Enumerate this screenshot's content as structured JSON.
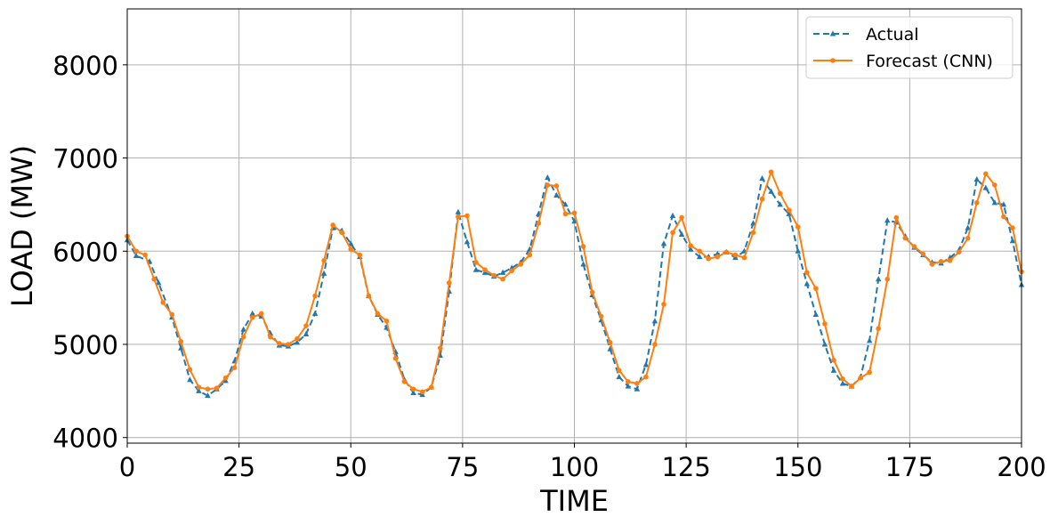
{
  "chart_data": {
    "type": "line",
    "title": "",
    "xlabel": "TIME",
    "ylabel": "LOAD (MW)",
    "xlim": [
      0,
      200
    ],
    "ylim": [
      3940,
      8600
    ],
    "xticks": [
      0,
      25,
      50,
      75,
      100,
      125,
      150,
      175,
      200
    ],
    "yticks": [
      4000,
      5000,
      6000,
      7000,
      8000
    ],
    "grid": true,
    "legend_position": "top-right",
    "series": [
      {
        "name": "Actual",
        "color": "#1f77b4",
        "line_style": "dashed",
        "marker": "triangle",
        "x": [
          0,
          2,
          5,
          7,
          10,
          12,
          14,
          16,
          18,
          20,
          22,
          24,
          26,
          28,
          30,
          32,
          34,
          36,
          38,
          40,
          42,
          44,
          46,
          48,
          50,
          52,
          54,
          56,
          58,
          60,
          62,
          64,
          66,
          68,
          70,
          72,
          74,
          76,
          78,
          80,
          82,
          84,
          86,
          88,
          90,
          92,
          94,
          96,
          98,
          100,
          102,
          104,
          106,
          108,
          110,
          112,
          114,
          116,
          118,
          120,
          122,
          124,
          126,
          128,
          130,
          132,
          134,
          136,
          138,
          140,
          142,
          144,
          146,
          148,
          150,
          152,
          154,
          156,
          158,
          160,
          162,
          164,
          166,
          168,
          170,
          172,
          174,
          176,
          178,
          180,
          182,
          184,
          186,
          188,
          190,
          192,
          194,
          196,
          198,
          200
        ],
        "y": [
          6120,
          5950,
          5890,
          5660,
          5290,
          4960,
          4620,
          4500,
          4450,
          4520,
          4610,
          4820,
          5160,
          5330,
          5300,
          5120,
          4990,
          4980,
          5020,
          5110,
          5330,
          5760,
          6250,
          6220,
          6080,
          5940,
          5520,
          5320,
          5180,
          4920,
          4620,
          4480,
          4460,
          4540,
          4880,
          5570,
          6420,
          6100,
          5800,
          5770,
          5730,
          5770,
          5820,
          5880,
          6020,
          6400,
          6790,
          6600,
          6500,
          6320,
          5860,
          5530,
          5260,
          4950,
          4650,
          4550,
          4520,
          4780,
          5250,
          6080,
          6380,
          6180,
          6020,
          5940,
          5940,
          5970,
          5990,
          5930,
          6000,
          6300,
          6780,
          6640,
          6500,
          6400,
          6000,
          5650,
          5320,
          5000,
          4720,
          4580,
          4550,
          4650,
          5040,
          5700,
          6330,
          6310,
          6160,
          6040,
          5960,
          5880,
          5870,
          5930,
          6010,
          6250,
          6770,
          6680,
          6520,
          6500,
          6110,
          5640
        ]
      },
      {
        "name": "Forecast (CNN)",
        "color": "#ff7f0e",
        "line_style": "solid",
        "marker": "circle",
        "x": [
          0,
          2,
          4,
          6,
          8,
          10,
          12,
          14,
          16,
          18,
          20,
          22,
          24,
          26,
          28,
          30,
          32,
          34,
          36,
          38,
          40,
          42,
          44,
          46,
          48,
          50,
          52,
          54,
          56,
          58,
          60,
          62,
          64,
          66,
          68,
          70,
          72,
          74,
          76,
          78,
          80,
          82,
          84,
          86,
          88,
          90,
          92,
          94,
          96,
          98,
          100,
          102,
          104,
          106,
          108,
          110,
          112,
          114,
          116,
          118,
          120,
          122,
          124,
          126,
          128,
          130,
          132,
          134,
          136,
          138,
          140,
          142,
          144,
          146,
          148,
          150,
          152,
          154,
          156,
          158,
          160,
          162,
          164,
          166,
          168,
          170,
          172,
          174,
          176,
          178,
          180,
          182,
          184,
          186,
          188,
          190,
          192,
          194,
          196,
          198,
          200
        ],
        "y": [
          6160,
          6000,
          5960,
          5700,
          5450,
          5320,
          5030,
          4730,
          4540,
          4520,
          4530,
          4640,
          4750,
          5080,
          5290,
          5330,
          5080,
          5010,
          5000,
          5060,
          5200,
          5520,
          5900,
          6280,
          6200,
          6020,
          5960,
          5520,
          5330,
          5250,
          4850,
          4600,
          4520,
          4490,
          4540,
          4960,
          5660,
          6370,
          6380,
          5880,
          5800,
          5740,
          5700,
          5790,
          5860,
          5960,
          6300,
          6710,
          6700,
          6400,
          6410,
          6050,
          5560,
          5300,
          5020,
          4720,
          4600,
          4580,
          4650,
          5000,
          5430,
          6200,
          6360,
          6060,
          6000,
          5920,
          5940,
          5990,
          5960,
          5930,
          6200,
          6560,
          6850,
          6620,
          6440,
          6260,
          5770,
          5600,
          5220,
          4830,
          4630,
          4550,
          4640,
          4700,
          5170,
          5700,
          6360,
          6140,
          6050,
          5970,
          5860,
          5890,
          5900,
          5990,
          6140,
          6520,
          6830,
          6710,
          6370,
          6250,
          5780
        ]
      }
    ]
  }
}
